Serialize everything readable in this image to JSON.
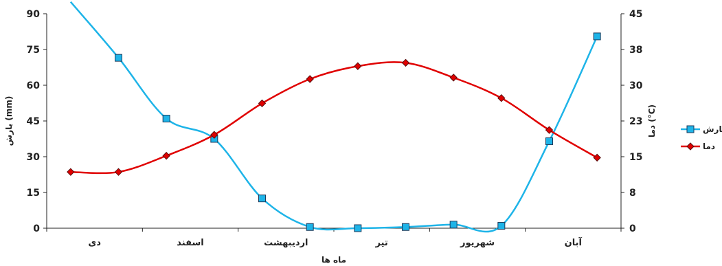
{
  "chart_data": {
    "type": "line",
    "xlabel": "ماه ها",
    "ylabel_left": "بارش (mm)",
    "ylabel_right": "دما (°C)",
    "x_tick_labels": [
      "دی",
      "اسفند",
      "اردیبهشت",
      "تیر",
      "شهریور",
      "آبان"
    ],
    "y_left_ticks": [
      "90",
      "75",
      "60",
      "45",
      "30",
      "15",
      "0"
    ],
    "y_right_ticks": [
      "45",
      "38",
      "30",
      "23",
      "15",
      "8",
      "0"
    ],
    "y_left_range": [
      0,
      90
    ],
    "y_right_range": [
      0,
      45
    ],
    "legend_position": "right",
    "grid": false,
    "series": [
      {
        "name": "بارش",
        "axis": "left",
        "color": "#1EB4E8",
        "marker": "square",
        "values": [
          95,
          71.5,
          46,
          37.5,
          12.5,
          0.5,
          0,
          0.5,
          1.5,
          1,
          36.5,
          80.5
        ]
      },
      {
        "name": "دما",
        "axis": "right",
        "color": "#E00000",
        "marker": "diamond",
        "values": [
          11.8,
          11.8,
          15.2,
          19.6,
          26.2,
          31.3,
          34,
          34.7,
          31.6,
          27.3,
          20.6,
          14.8
        ]
      }
    ]
  }
}
